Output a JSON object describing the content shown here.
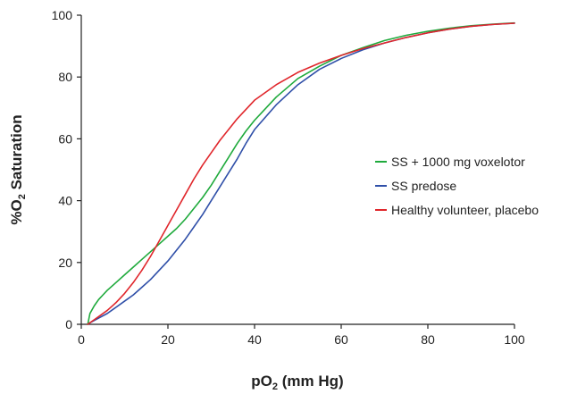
{
  "chart_data": {
    "type": "line",
    "xlabel": {
      "main": "pO",
      "sub": "2",
      "rest": " (mm Hg)"
    },
    "ylabel": {
      "pre": "%O",
      "sub": "2",
      "rest": " Saturation"
    },
    "xlim": [
      0,
      100
    ],
    "ylim": [
      0,
      100
    ],
    "xticks": [
      0,
      20,
      40,
      60,
      80,
      100
    ],
    "yticks": [
      0,
      20,
      40,
      60,
      80,
      100
    ],
    "grid": false,
    "legend_position": "right",
    "series": [
      {
        "name": "SS + 1000 mg voxelotor",
        "color": "#1faa3c",
        "x": [
          1.5,
          2,
          3,
          4,
          5,
          6,
          8,
          10,
          12,
          14,
          16,
          18,
          20,
          22,
          24,
          26,
          28,
          30,
          32,
          34,
          36,
          38,
          40,
          45,
          50,
          55,
          60,
          65,
          70,
          75,
          80,
          85,
          90,
          95,
          100
        ],
        "y": [
          0,
          3.5,
          6,
          8,
          9.5,
          11,
          13.5,
          16,
          18.5,
          21,
          23.5,
          26,
          28.5,
          31,
          34,
          37.5,
          41,
          45,
          49.5,
          54,
          58.5,
          62.5,
          66,
          73.5,
          79.5,
          83.5,
          87,
          89.5,
          91.8,
          93.5,
          94.8,
          95.8,
          96.6,
          97.1,
          97.5
        ]
      },
      {
        "name": "SS predose",
        "color": "#2f4fa8",
        "x": [
          1.5,
          2,
          4,
          6,
          8,
          10,
          12,
          14,
          16,
          18,
          20,
          22,
          24,
          26,
          28,
          30,
          32,
          34,
          36,
          38,
          40,
          45,
          50,
          55,
          60,
          65,
          70,
          75,
          80,
          85,
          90,
          95,
          100
        ],
        "y": [
          0,
          0.5,
          2,
          3.5,
          5.5,
          7.5,
          9.5,
          12,
          14.5,
          17.5,
          20.5,
          24,
          27.5,
          31.5,
          35.5,
          40,
          44.5,
          49,
          53.5,
          58.5,
          63,
          71,
          77.5,
          82.5,
          86,
          88.8,
          91,
          92.8,
          94.3,
          95.5,
          96.4,
          97,
          97.4
        ]
      },
      {
        "name": "Healthy volunteer, placebo",
        "color": "#e0262b",
        "x": [
          1.5,
          2,
          4,
          6,
          8,
          10,
          12,
          14,
          16,
          18,
          20,
          22,
          24,
          26,
          28,
          30,
          32,
          34,
          36,
          38,
          40,
          45,
          50,
          55,
          60,
          65,
          70,
          75,
          80,
          85,
          90,
          95,
          100
        ],
        "y": [
          0,
          0.5,
          2.5,
          4.5,
          7,
          10,
          13.5,
          17.5,
          22,
          27,
          32,
          37,
          42,
          47,
          51.5,
          55.5,
          59.5,
          63,
          66.5,
          69.5,
          72.5,
          77.5,
          81.5,
          84.5,
          87,
          89.2,
          91,
          92.8,
          94.3,
          95.5,
          96.4,
          97,
          97.4
        ]
      }
    ]
  }
}
